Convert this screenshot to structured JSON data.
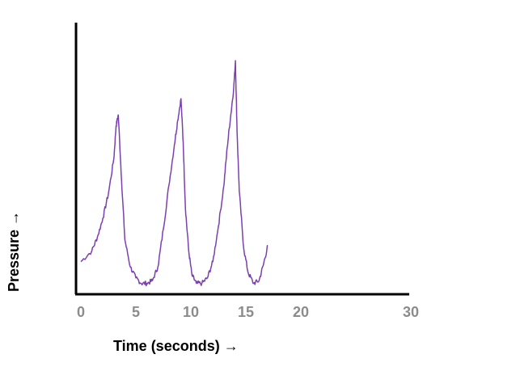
{
  "chart_data": {
    "type": "line",
    "xlabel": "Time (seconds) →",
    "ylabel": "Pressure →",
    "xlim": [
      0,
      30
    ],
    "x_ticks": [
      0,
      5,
      10,
      15,
      20,
      30
    ],
    "y_ticks": [],
    "grid": false,
    "legend": "none",
    "line_color": "#7b3fb0",
    "axis_color": "#000000",
    "tick_label_color": "#8c8c8c",
    "series": [
      {
        "x": [
          0,
          1,
          1.5,
          2,
          2.5,
          3,
          3.2,
          3.4,
          3.7,
          4,
          4.5,
          5,
          5.5,
          6,
          6.5,
          7,
          7.5,
          8,
          8.5,
          8.8,
          9.1,
          9.3,
          9.5,
          9.8,
          10.1,
          10.5,
          11,
          11.5,
          12,
          12.5,
          13,
          13.3,
          13.6,
          13.9,
          14.05,
          14.2,
          14.4,
          14.8,
          15.2,
          15.7,
          16.2,
          16.6,
          17
        ],
        "y": [
          0.12,
          0.16,
          0.21,
          0.28,
          0.37,
          0.5,
          0.62,
          0.66,
          0.42,
          0.2,
          0.1,
          0.06,
          0.04,
          0.04,
          0.05,
          0.1,
          0.24,
          0.4,
          0.55,
          0.64,
          0.72,
          0.56,
          0.32,
          0.16,
          0.07,
          0.04,
          0.04,
          0.06,
          0.12,
          0.25,
          0.4,
          0.54,
          0.65,
          0.76,
          0.86,
          0.6,
          0.38,
          0.17,
          0.08,
          0.04,
          0.05,
          0.11,
          0.18
        ]
      }
    ]
  }
}
